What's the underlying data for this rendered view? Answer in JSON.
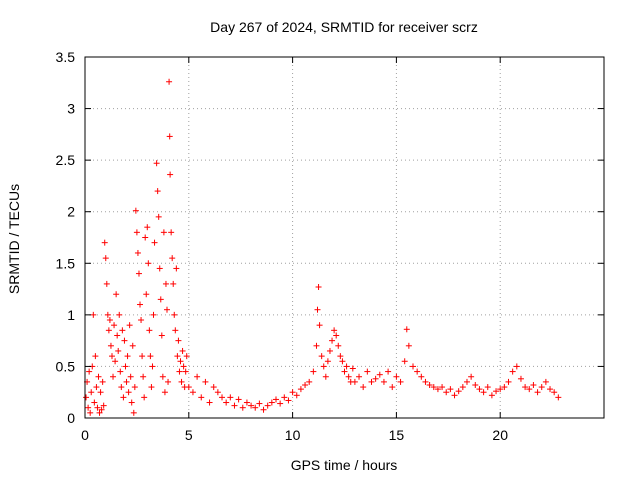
{
  "chart_data": {
    "type": "scatter",
    "title": "Day 267 of 2024, SRMTID for receiver scrz",
    "xlabel": "GPS time / hours",
    "ylabel": "SRMTID / TECUs",
    "xlim": [
      0,
      25
    ],
    "ylim": [
      0,
      3.5
    ],
    "xticks": [
      0,
      5,
      10,
      15,
      20
    ],
    "xtick_labels": [
      "0",
      "5",
      "10",
      "15",
      "20"
    ],
    "yticks": [
      0,
      0.5,
      1,
      1.5,
      2,
      2.5,
      3,
      3.5
    ],
    "ytick_labels": [
      "0",
      "0.5",
      "1",
      "1.5",
      "2",
      "2.5",
      "3",
      "3.5"
    ],
    "grid": true,
    "marker": "+",
    "series": [
      {
        "name": "SRMTID",
        "color": "#ff0000",
        "points": [
          [
            0.05,
            0.2
          ],
          [
            0.1,
            0.35
          ],
          [
            0.15,
            0.1
          ],
          [
            0.2,
            0.45
          ],
          [
            0.25,
            0.05
          ],
          [
            0.3,
            0.25
          ],
          [
            0.35,
            0.5
          ],
          [
            0.4,
            1.0
          ],
          [
            0.45,
            0.15
          ],
          [
            0.5,
            0.6
          ],
          [
            0.55,
            0.3
          ],
          [
            0.6,
            0.1
          ],
          [
            0.65,
            0.4
          ],
          [
            0.7,
            0.05
          ],
          [
            0.75,
            0.25
          ],
          [
            0.8,
            0.08
          ],
          [
            0.85,
            0.35
          ],
          [
            0.9,
            0.12
          ],
          [
            0.95,
            1.7
          ],
          [
            1.0,
            1.55
          ],
          [
            1.05,
            1.3
          ],
          [
            1.1,
            1.0
          ],
          [
            1.15,
            0.85
          ],
          [
            1.2,
            0.95
          ],
          [
            1.25,
            0.7
          ],
          [
            1.3,
            0.6
          ],
          [
            1.35,
            0.4
          ],
          [
            1.4,
            0.9
          ],
          [
            1.45,
            0.55
          ],
          [
            1.5,
            1.2
          ],
          [
            1.55,
            0.8
          ],
          [
            1.6,
            0.65
          ],
          [
            1.65,
            1.0
          ],
          [
            1.7,
            0.45
          ],
          [
            1.75,
            0.3
          ],
          [
            1.8,
            0.85
          ],
          [
            1.85,
            0.2
          ],
          [
            1.9,
            0.75
          ],
          [
            1.95,
            0.5
          ],
          [
            2.0,
            0.35
          ],
          [
            2.05,
            0.6
          ],
          [
            2.1,
            0.25
          ],
          [
            2.15,
            0.9
          ],
          [
            2.2,
            0.4
          ],
          [
            2.25,
            0.15
          ],
          [
            2.3,
            0.7
          ],
          [
            2.35,
            0.05
          ],
          [
            2.4,
            0.3
          ],
          [
            2.45,
            2.01
          ],
          [
            2.5,
            1.8
          ],
          [
            2.55,
            1.6
          ],
          [
            2.6,
            1.4
          ],
          [
            2.65,
            1.1
          ],
          [
            2.7,
            0.95
          ],
          [
            2.75,
            0.6
          ],
          [
            2.8,
            0.4
          ],
          [
            2.85,
            0.2
          ],
          [
            2.9,
            1.75
          ],
          [
            2.95,
            1.2
          ],
          [
            3.0,
            1.85
          ],
          [
            3.05,
            1.5
          ],
          [
            3.1,
            0.85
          ],
          [
            3.15,
            0.6
          ],
          [
            3.2,
            0.3
          ],
          [
            3.25,
            0.5
          ],
          [
            3.3,
            1.0
          ],
          [
            3.35,
            1.7
          ],
          [
            3.45,
            2.47
          ],
          [
            3.5,
            2.2
          ],
          [
            3.55,
            1.95
          ],
          [
            3.6,
            1.45
          ],
          [
            3.65,
            1.15
          ],
          [
            3.7,
            0.8
          ],
          [
            3.75,
            0.4
          ],
          [
            3.8,
            1.8
          ],
          [
            3.85,
            0.25
          ],
          [
            3.9,
            1.3
          ],
          [
            3.95,
            1.05
          ],
          [
            4.0,
            0.35
          ],
          [
            4.05,
            3.26
          ],
          [
            4.08,
            2.73
          ],
          [
            4.1,
            2.36
          ],
          [
            4.15,
            1.8
          ],
          [
            4.2,
            1.55
          ],
          [
            4.25,
            1.3
          ],
          [
            4.3,
            1.0
          ],
          [
            4.35,
            0.85
          ],
          [
            4.4,
            1.45
          ],
          [
            4.45,
            0.6
          ],
          [
            4.5,
            0.75
          ],
          [
            4.55,
            0.45
          ],
          [
            4.6,
            0.55
          ],
          [
            4.65,
            0.35
          ],
          [
            4.7,
            0.65
          ],
          [
            4.75,
            0.5
          ],
          [
            4.8,
            0.3
          ],
          [
            4.85,
            0.45
          ],
          [
            4.9,
            0.6
          ],
          [
            5.0,
            0.3
          ],
          [
            5.2,
            0.25
          ],
          [
            5.4,
            0.4
          ],
          [
            5.6,
            0.2
          ],
          [
            5.8,
            0.35
          ],
          [
            6.0,
            0.15
          ],
          [
            6.2,
            0.3
          ],
          [
            6.4,
            0.25
          ],
          [
            6.6,
            0.2
          ],
          [
            6.8,
            0.15
          ],
          [
            7.0,
            0.2
          ],
          [
            7.2,
            0.12
          ],
          [
            7.4,
            0.18
          ],
          [
            7.6,
            0.1
          ],
          [
            7.8,
            0.15
          ],
          [
            8.0,
            0.12
          ],
          [
            8.2,
            0.1
          ],
          [
            8.4,
            0.14
          ],
          [
            8.6,
            0.08
          ],
          [
            8.8,
            0.12
          ],
          [
            9.0,
            0.15
          ],
          [
            9.2,
            0.18
          ],
          [
            9.4,
            0.14
          ],
          [
            9.6,
            0.2
          ],
          [
            9.8,
            0.17
          ],
          [
            10.0,
            0.25
          ],
          [
            10.2,
            0.22
          ],
          [
            10.4,
            0.28
          ],
          [
            10.6,
            0.32
          ],
          [
            10.8,
            0.35
          ],
          [
            11.0,
            0.45
          ],
          [
            11.15,
            0.7
          ],
          [
            11.2,
            1.05
          ],
          [
            11.25,
            1.27
          ],
          [
            11.3,
            0.9
          ],
          [
            11.4,
            0.6
          ],
          [
            11.5,
            0.5
          ],
          [
            11.6,
            0.4
          ],
          [
            11.7,
            0.55
          ],
          [
            11.8,
            0.65
          ],
          [
            11.9,
            0.75
          ],
          [
            12.0,
            0.85
          ],
          [
            12.1,
            0.8
          ],
          [
            12.2,
            0.7
          ],
          [
            12.3,
            0.6
          ],
          [
            12.4,
            0.55
          ],
          [
            12.5,
            0.45
          ],
          [
            12.6,
            0.5
          ],
          [
            12.7,
            0.4
          ],
          [
            12.8,
            0.35
          ],
          [
            12.9,
            0.48
          ],
          [
            13.0,
            0.35
          ],
          [
            13.2,
            0.4
          ],
          [
            13.4,
            0.3
          ],
          [
            13.6,
            0.45
          ],
          [
            13.8,
            0.35
          ],
          [
            14.0,
            0.38
          ],
          [
            14.2,
            0.42
          ],
          [
            14.4,
            0.35
          ],
          [
            14.6,
            0.45
          ],
          [
            14.8,
            0.3
          ],
          [
            15.0,
            0.4
          ],
          [
            15.2,
            0.35
          ],
          [
            15.4,
            0.55
          ],
          [
            15.5,
            0.86
          ],
          [
            15.6,
            0.7
          ],
          [
            15.8,
            0.5
          ],
          [
            16.0,
            0.45
          ],
          [
            16.2,
            0.4
          ],
          [
            16.4,
            0.35
          ],
          [
            16.6,
            0.32
          ],
          [
            16.8,
            0.3
          ],
          [
            17.0,
            0.28
          ],
          [
            17.2,
            0.3
          ],
          [
            17.4,
            0.25
          ],
          [
            17.6,
            0.28
          ],
          [
            17.8,
            0.22
          ],
          [
            18.0,
            0.26
          ],
          [
            18.2,
            0.3
          ],
          [
            18.4,
            0.35
          ],
          [
            18.6,
            0.4
          ],
          [
            18.8,
            0.32
          ],
          [
            19.0,
            0.28
          ],
          [
            19.2,
            0.25
          ],
          [
            19.4,
            0.3
          ],
          [
            19.6,
            0.22
          ],
          [
            19.8,
            0.26
          ],
          [
            20.0,
            0.28
          ],
          [
            20.2,
            0.3
          ],
          [
            20.4,
            0.35
          ],
          [
            20.6,
            0.45
          ],
          [
            20.8,
            0.5
          ],
          [
            21.0,
            0.38
          ],
          [
            21.2,
            0.3
          ],
          [
            21.4,
            0.28
          ],
          [
            21.6,
            0.32
          ],
          [
            21.8,
            0.25
          ],
          [
            22.0,
            0.3
          ],
          [
            22.2,
            0.35
          ],
          [
            22.4,
            0.28
          ],
          [
            22.6,
            0.25
          ],
          [
            22.8,
            0.2
          ]
        ]
      }
    ]
  }
}
